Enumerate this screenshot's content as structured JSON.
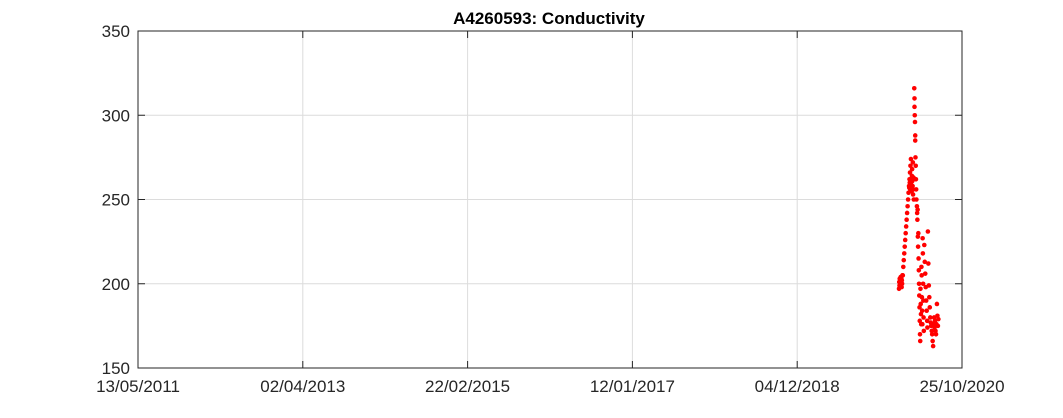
{
  "chart_data": {
    "type": "scatter",
    "title": "A4260593: Conductivity",
    "xlabel": "",
    "ylabel": "",
    "x_axis": {
      "scale": "date",
      "range": [
        "2011-05-13",
        "2020-10-25"
      ],
      "tick_labels": [
        "13/05/2011",
        "02/04/2013",
        "22/02/2015",
        "12/01/2017",
        "04/12/2018",
        "25/10/2020"
      ]
    },
    "y_axis": {
      "range": [
        150,
        350
      ],
      "tick_labels": [
        "150",
        "200",
        "250",
        "300",
        "350"
      ]
    },
    "grid": true,
    "legend": "none",
    "marker_color": "#ff0000",
    "series": [
      {
        "points": [
          [
            "2020-02-04",
            197
          ],
          [
            "2020-02-05",
            201
          ],
          [
            "2020-02-06",
            199
          ],
          [
            "2020-02-07",
            203
          ],
          [
            "2020-02-08",
            198
          ],
          [
            "2020-02-09",
            202
          ],
          [
            "2020-02-10",
            200
          ],
          [
            "2020-02-11",
            204
          ],
          [
            "2020-02-12",
            199
          ],
          [
            "2020-02-13",
            201
          ],
          [
            "2020-02-14",
            203
          ],
          [
            "2020-02-15",
            198
          ],
          [
            "2020-02-16",
            202
          ],
          [
            "2020-02-17",
            200
          ],
          [
            "2020-02-18",
            205
          ],
          [
            "2020-02-20",
            205
          ],
          [
            "2020-02-22",
            210
          ],
          [
            "2020-02-24",
            214
          ],
          [
            "2020-02-26",
            218
          ],
          [
            "2020-02-28",
            222
          ],
          [
            "2020-03-01",
            226
          ],
          [
            "2020-03-03",
            230
          ],
          [
            "2020-03-05",
            234
          ],
          [
            "2020-03-07",
            238
          ],
          [
            "2020-03-09",
            242
          ],
          [
            "2020-03-11",
            246
          ],
          [
            "2020-03-13",
            250
          ],
          [
            "2020-03-15",
            254
          ],
          [
            "2020-03-17",
            258
          ],
          [
            "2020-03-19",
            262
          ],
          [
            "2020-03-21",
            266
          ],
          [
            "2020-03-23",
            270
          ],
          [
            "2020-03-25",
            274
          ],
          [
            "2020-03-18",
            257
          ],
          [
            "2020-03-20",
            260
          ],
          [
            "2020-03-22",
            256
          ],
          [
            "2020-03-24",
            262
          ],
          [
            "2020-03-26",
            259
          ],
          [
            "2020-03-28",
            255
          ],
          [
            "2020-03-29",
            264
          ],
          [
            "2020-03-30",
            268
          ],
          [
            "2020-03-31",
            261
          ],
          [
            "2020-04-01",
            258
          ],
          [
            "2020-04-02",
            272
          ],
          [
            "2020-04-03",
            253
          ],
          [
            "2020-04-04",
            256
          ],
          [
            "2020-04-05",
            263
          ],
          [
            "2020-04-06",
            250
          ],
          [
            "2020-04-08",
            316
          ],
          [
            "2020-04-09",
            310
          ],
          [
            "2020-04-09",
            305
          ],
          [
            "2020-04-10",
            300
          ],
          [
            "2020-04-11",
            296
          ],
          [
            "2020-04-12",
            288
          ],
          [
            "2020-04-12",
            285
          ],
          [
            "2020-04-13",
            275
          ],
          [
            "2020-04-14",
            270
          ],
          [
            "2020-04-15",
            262
          ],
          [
            "2020-04-16",
            256
          ],
          [
            "2020-04-17",
            250
          ],
          [
            "2020-04-19",
            246
          ],
          [
            "2020-04-20",
            242
          ],
          [
            "2020-04-21",
            238
          ],
          [
            "2020-04-22",
            244
          ],
          [
            "2020-04-23",
            228
          ],
          [
            "2020-04-24",
            222
          ],
          [
            "2020-04-25",
            230
          ],
          [
            "2020-04-26",
            215
          ],
          [
            "2020-04-27",
            208
          ],
          [
            "2020-04-28",
            200
          ],
          [
            "2020-04-29",
            193
          ],
          [
            "2020-04-30",
            186
          ],
          [
            "2020-05-01",
            178
          ],
          [
            "2020-05-02",
            170
          ],
          [
            "2020-05-03",
            166
          ],
          [
            "2020-05-04",
            197
          ],
          [
            "2020-05-05",
            188
          ],
          [
            "2020-05-06",
            182
          ],
          [
            "2020-05-07",
            176
          ],
          [
            "2020-05-08",
            210
          ],
          [
            "2020-05-09",
            205
          ],
          [
            "2020-05-10",
            192
          ],
          [
            "2020-05-11",
            184
          ],
          [
            "2020-05-12",
            176
          ],
          [
            "2020-05-13",
            227
          ],
          [
            "2020-05-14",
            218
          ],
          [
            "2020-05-15",
            200
          ],
          [
            "2020-05-16",
            190
          ],
          [
            "2020-05-17",
            180
          ],
          [
            "2020-05-18",
            172
          ],
          [
            "2020-05-20",
            223
          ],
          [
            "2020-05-22",
            213
          ],
          [
            "2020-05-24",
            206
          ],
          [
            "2020-05-26",
            198
          ],
          [
            "2020-05-28",
            190
          ],
          [
            "2020-05-30",
            184
          ],
          [
            "2020-06-01",
            178
          ],
          [
            "2020-06-02",
            174
          ],
          [
            "2020-06-04",
            231
          ],
          [
            "2020-06-06",
            212
          ],
          [
            "2020-06-08",
            199
          ],
          [
            "2020-06-10",
            192
          ],
          [
            "2020-06-12",
            186
          ],
          [
            "2020-06-14",
            180
          ],
          [
            "2020-06-16",
            177
          ],
          [
            "2020-06-18",
            175
          ],
          [
            "2020-06-20",
            172
          ],
          [
            "2020-06-22",
            170
          ],
          [
            "2020-06-24",
            166
          ],
          [
            "2020-06-26",
            163
          ],
          [
            "2020-06-28",
            176
          ],
          [
            "2020-06-30",
            180
          ],
          [
            "2020-07-02",
            174
          ],
          [
            "2020-07-04",
            178
          ],
          [
            "2020-07-06",
            172
          ],
          [
            "2020-07-08",
            170
          ],
          [
            "2020-07-10",
            176
          ],
          [
            "2020-07-12",
            188
          ],
          [
            "2020-07-14",
            181
          ],
          [
            "2020-07-16",
            175
          ],
          [
            "2020-07-18",
            179
          ]
        ]
      }
    ]
  }
}
